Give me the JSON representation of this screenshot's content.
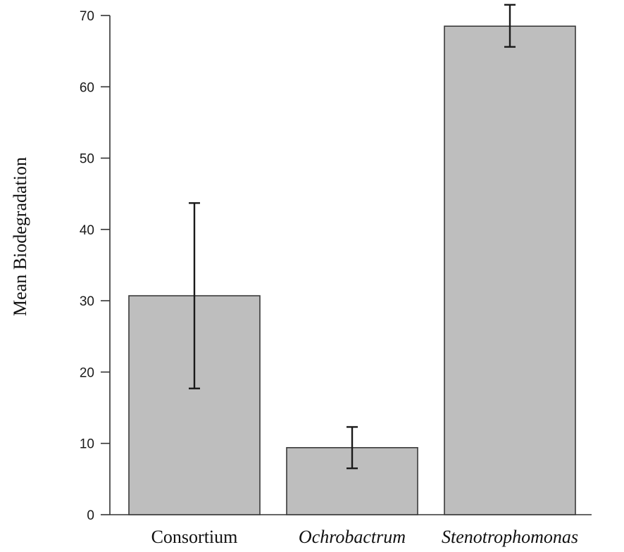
{
  "chart_data": {
    "type": "bar",
    "title": "",
    "xlabel": "",
    "ylabel": "Mean Biodegradation",
    "categories": [
      "Consortium",
      "Ochrobactrum",
      "Stenotrophomonas"
    ],
    "category_italic": [
      false,
      true,
      true
    ],
    "values": [
      30.7,
      9.4,
      68.5
    ],
    "error_low": [
      17.7,
      6.5,
      65.6
    ],
    "error_high": [
      43.7,
      12.3,
      71.5
    ],
    "ylim": [
      0,
      70
    ],
    "yticks": [
      0,
      10,
      20,
      30,
      40,
      50,
      60,
      70
    ],
    "grid": false,
    "legend": "none",
    "bar_color": "#bebebe",
    "bar_edge_color": "#3a3a3a",
    "error_bar_color": "#1a1a1a"
  }
}
